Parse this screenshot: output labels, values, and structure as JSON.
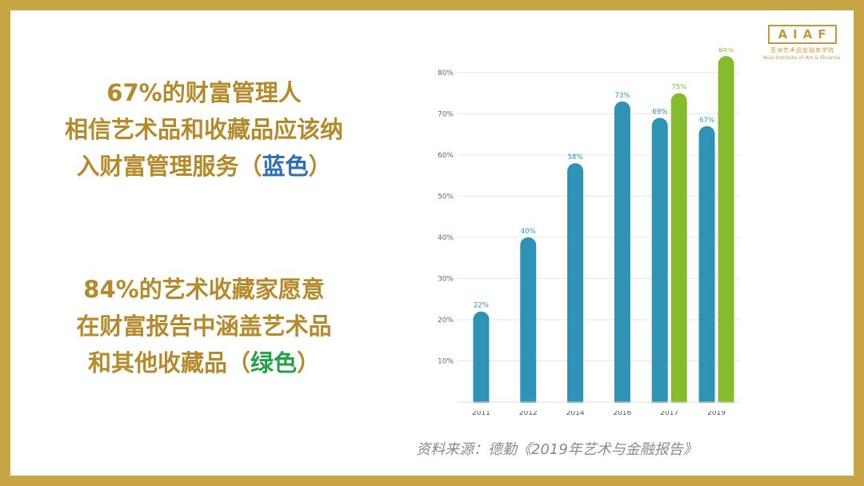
{
  "logo": {
    "text": "AIAF",
    "cn": "亚洲艺术品金融商学院",
    "en": "Asia Institute of Art & Finance"
  },
  "statement1": {
    "line1": "67%的财富管理人",
    "line2": "相信艺术品和收藏品应该纳",
    "line3_prefix": "入财富管理服务（",
    "line3_color": "蓝色",
    "line3_suffix": "）"
  },
  "statement2": {
    "line1": "84%的艺术收藏家愿意",
    "line2": "在财富报告中涵盖艺术品",
    "line3_prefix": "和其他收藏品（",
    "line3_color": "绿色",
    "line3_suffix": "）"
  },
  "source": "资料来源：德勤《2019年艺术与金融报告》",
  "colors": {
    "frame": "#c9a445",
    "gold_text": "#b58a2a",
    "blue_bar": "#2f93b5",
    "green_bar": "#85bb2c",
    "blue_word": "#2f6db5",
    "green_word": "#21a345"
  },
  "chart_data": {
    "type": "bar",
    "categories": [
      "2011",
      "2012",
      "2014",
      "2016",
      "2017",
      "2019"
    ],
    "series": [
      {
        "values": [
          22,
          40,
          58,
          73,
          69,
          67
        ],
        "labels": [
          "22%",
          "40%",
          "58%",
          "73%",
          "69%",
          "67%"
        ]
      },
      {
        "values": [
          null,
          null,
          null,
          null,
          75,
          84
        ],
        "labels": [
          "",
          "",
          "",
          "",
          "75%",
          "84%"
        ]
      }
    ],
    "yticks": [
      10,
      20,
      30,
      40,
      50,
      60,
      70,
      80
    ],
    "ytick_labels": [
      "10%",
      "20%",
      "30%",
      "40%",
      "50%",
      "60%",
      "70%",
      "80%"
    ],
    "ylim": [
      0,
      85
    ],
    "grid": true,
    "title": "",
    "xlabel": "",
    "ylabel": ""
  }
}
